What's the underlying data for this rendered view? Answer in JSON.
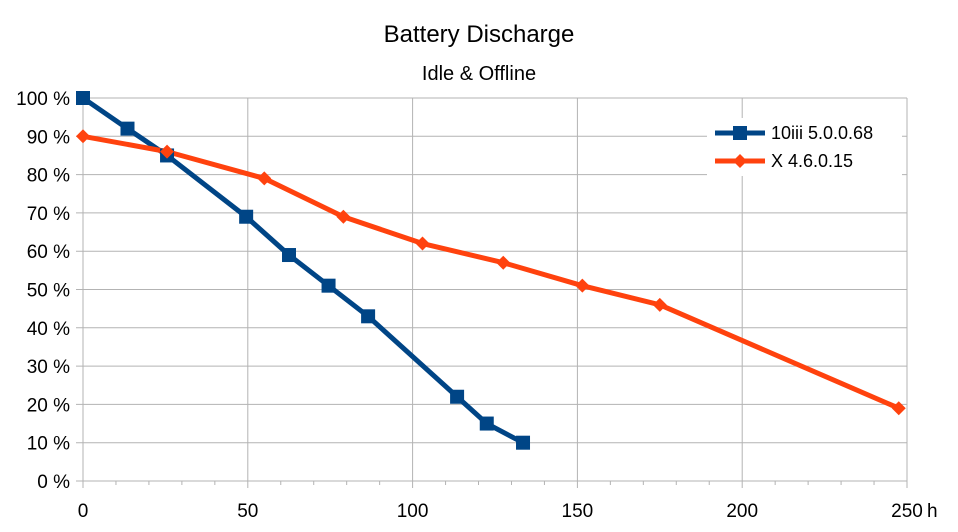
{
  "chart_data": {
    "type": "line",
    "title": "Battery Discharge",
    "subtitle": "Idle & Offline",
    "xlabel": "h",
    "ylabel": "",
    "xlim": [
      0,
      250
    ],
    "ylim": [
      0,
      100
    ],
    "x_ticks": [
      0,
      50,
      100,
      150,
      200,
      250
    ],
    "x_tick_labels": [
      "0",
      "50",
      "100",
      "150",
      "200",
      "250"
    ],
    "x_minor_step": 10,
    "y_ticks": [
      0,
      10,
      20,
      30,
      40,
      50,
      60,
      70,
      80,
      90,
      100
    ],
    "y_tick_labels": [
      "0 %",
      "10 %",
      "20 %",
      "30 %",
      "40 %",
      "50 %",
      "60 %",
      "70 %",
      "80 %",
      "90 %",
      "100 %"
    ],
    "grid": true,
    "legend_position": "top-right",
    "series": [
      {
        "name": "10iii 5.0.0.68",
        "color": "#004586",
        "marker": "square",
        "x": [
          0,
          13.5,
          25.5,
          49.5,
          62.5,
          74.5,
          86.5,
          113.5,
          122.5,
          133.5
        ],
        "y": [
          100,
          92,
          85,
          69,
          59,
          51,
          43,
          22,
          15,
          10
        ]
      },
      {
        "name": "X      4.6.0.15",
        "color": "#ff420e",
        "marker": "diamond",
        "x": [
          0,
          25.5,
          55,
          79,
          103,
          127.5,
          151.5,
          175,
          247.5
        ],
        "y": [
          90,
          86,
          79,
          69,
          62,
          57,
          51,
          46,
          19
        ]
      }
    ]
  }
}
